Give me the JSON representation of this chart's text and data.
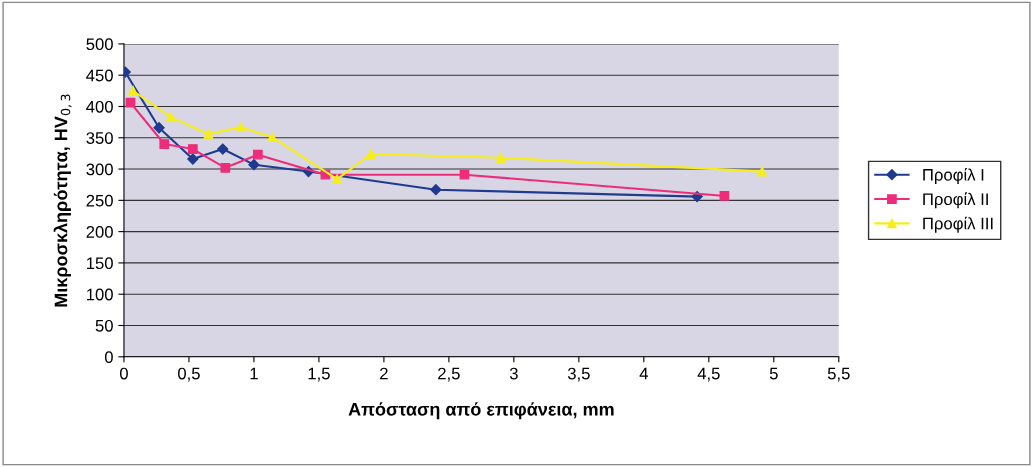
{
  "chart_data": {
    "type": "line",
    "xlabel": "Απόσταση από επιφάνεια, mm",
    "ylabel": "Μικροσκληρότητα, HV$_{0,3}$",
    "xlim": [
      0,
      5.5
    ],
    "xticks": [
      0,
      {
        "value": 0.5,
        "label": "0,5"
      },
      1,
      {
        "value": 1.5,
        "label": "1,5"
      },
      2,
      {
        "value": 2.5,
        "label": "2,5"
      },
      3,
      {
        "value": 3.5,
        "label": "3,5"
      },
      4,
      {
        "value": 4.5,
        "label": "4,5"
      },
      5,
      {
        "value": 5.5,
        "label": "5,5"
      }
    ],
    "ylim": [
      0,
      500
    ],
    "yticks": [
      0,
      50,
      100,
      150,
      200,
      250,
      300,
      350,
      400,
      450,
      500
    ],
    "grid": "y",
    "legend": "right",
    "series": [
      {
        "name": "Προφίλ I",
        "color": "#1f3a8f",
        "marker": "diamond",
        "x": [
          0.01,
          0.27,
          0.53,
          0.76,
          1.0,
          1.42,
          2.4,
          4.41
        ],
        "values": [
          455,
          366,
          316,
          332,
          307,
          296,
          267,
          256
        ]
      },
      {
        "name": "Προφίλ II",
        "color": "#ee2d7a",
        "marker": "square",
        "x": [
          0.05,
          0.31,
          0.53,
          0.78,
          1.03,
          1.55,
          2.62,
          4.62
        ],
        "values": [
          406,
          340,
          332,
          302,
          323,
          291,
          291,
          257
        ]
      },
      {
        "name": "Προφίλ III",
        "color": "#f5ee1a",
        "marker": "triangle",
        "x": [
          0.07,
          0.36,
          0.65,
          0.9,
          1.14,
          1.64,
          1.9,
          2.9,
          4.91
        ],
        "values": [
          425,
          383,
          356,
          367,
          351,
          284,
          324,
          318,
          296
        ]
      }
    ]
  }
}
